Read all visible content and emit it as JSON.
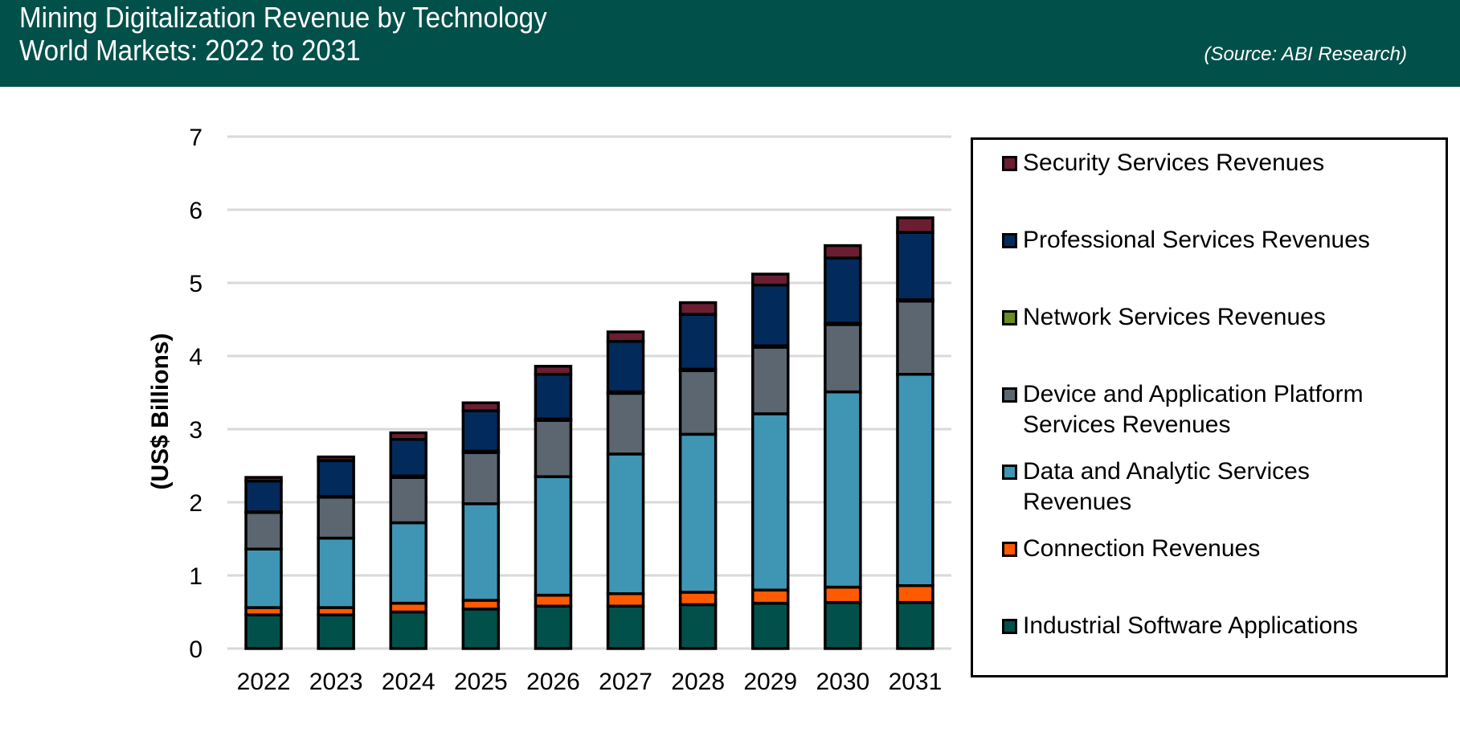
{
  "header": {
    "title_line1": "Mining Digitalization Revenue by Technology",
    "title_line2": "World Markets: 2022 to 2031",
    "source": "(Source: ABI Research)",
    "background_color": "#02504a"
  },
  "chart_data": {
    "type": "bar",
    "stacked": true,
    "title": "Mining Digitalization Revenue by Technology World Markets: 2022 to 2031",
    "xlabel": "",
    "ylabel": "(US$ Billions)",
    "ylim": [
      0,
      7
    ],
    "yticks": [
      "0",
      "1",
      "2",
      "3",
      "4",
      "5",
      "6",
      "7"
    ],
    "grid": true,
    "legend_position": "right",
    "categories": [
      "2022",
      "2023",
      "2024",
      "2025",
      "2026",
      "2027",
      "2028",
      "2029",
      "2030",
      "2031"
    ],
    "series": [
      {
        "name": "Industrial Software Applications",
        "color": "#02504a",
        "values": [
          0.46,
          0.46,
          0.5,
          0.54,
          0.58,
          0.58,
          0.6,
          0.62,
          0.63,
          0.63
        ]
      },
      {
        "name": "Connection Revenues",
        "color": "#ff5a00",
        "values": [
          0.1,
          0.1,
          0.12,
          0.12,
          0.15,
          0.17,
          0.17,
          0.18,
          0.21,
          0.23
        ]
      },
      {
        "name": "Data and Analytic Services Revenues",
        "color": "#3f96b4",
        "values": [
          0.8,
          0.95,
          1.1,
          1.32,
          1.62,
          1.91,
          2.16,
          2.41,
          2.67,
          2.89
        ]
      },
      {
        "name": "Device and Application Platform Services Revenues",
        "color": "#5b6670",
        "values": [
          0.5,
          0.56,
          0.62,
          0.7,
          0.77,
          0.83,
          0.87,
          0.91,
          0.92,
          1.0
        ]
      },
      {
        "name": "Network Services Revenues",
        "color": "#6a8c23",
        "values": [
          0.01,
          0.01,
          0.02,
          0.02,
          0.02,
          0.02,
          0.02,
          0.02,
          0.02,
          0.02
        ]
      },
      {
        "name": "Professional Services Revenues",
        "color": "#022b5c",
        "values": [
          0.42,
          0.49,
          0.5,
          0.55,
          0.61,
          0.69,
          0.75,
          0.83,
          0.89,
          0.92
        ]
      },
      {
        "name": "Security Services Revenues",
        "color": "#6b1e32",
        "values": [
          0.05,
          0.05,
          0.09,
          0.11,
          0.11,
          0.13,
          0.16,
          0.15,
          0.17,
          0.2
        ]
      }
    ]
  },
  "legend": {
    "items": [
      {
        "label": "Security Services Revenues",
        "color": "#6b1e32"
      },
      {
        "label": "Professional Services Revenues",
        "color": "#022b5c"
      },
      {
        "label": "Network Services Revenues",
        "color": "#6a8c23"
      },
      {
        "label": "Device and Application Platform Services Revenues",
        "color": "#5b6670"
      },
      {
        "label": "Data and Analytic Services Revenues",
        "color": "#3f96b4"
      },
      {
        "label": "Connection Revenues",
        "color": "#ff5a00"
      },
      {
        "label": "Industrial Software Applications",
        "color": "#02504a"
      }
    ]
  }
}
